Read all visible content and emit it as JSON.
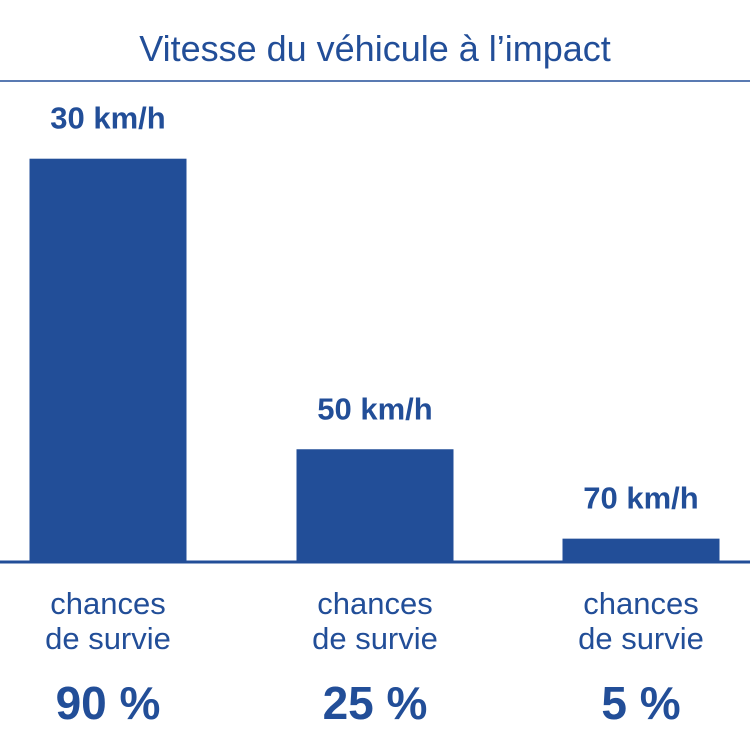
{
  "chart_data": {
    "type": "bar",
    "title": "Vitesse du véhicule à l’impact",
    "xlabel": "",
    "ylabel": "",
    "categories": [
      "30 km/h",
      "50 km/h",
      "70 km/h"
    ],
    "values": [
      90,
      25,
      5
    ],
    "value_labels": [
      "90 %",
      "25 %",
      "5 %"
    ],
    "category_caption": [
      "chances",
      "de survie"
    ],
    "ylim": [
      0,
      100
    ],
    "grid": false,
    "bar_color": "#224e98",
    "axis_color": "#224e98"
  }
}
